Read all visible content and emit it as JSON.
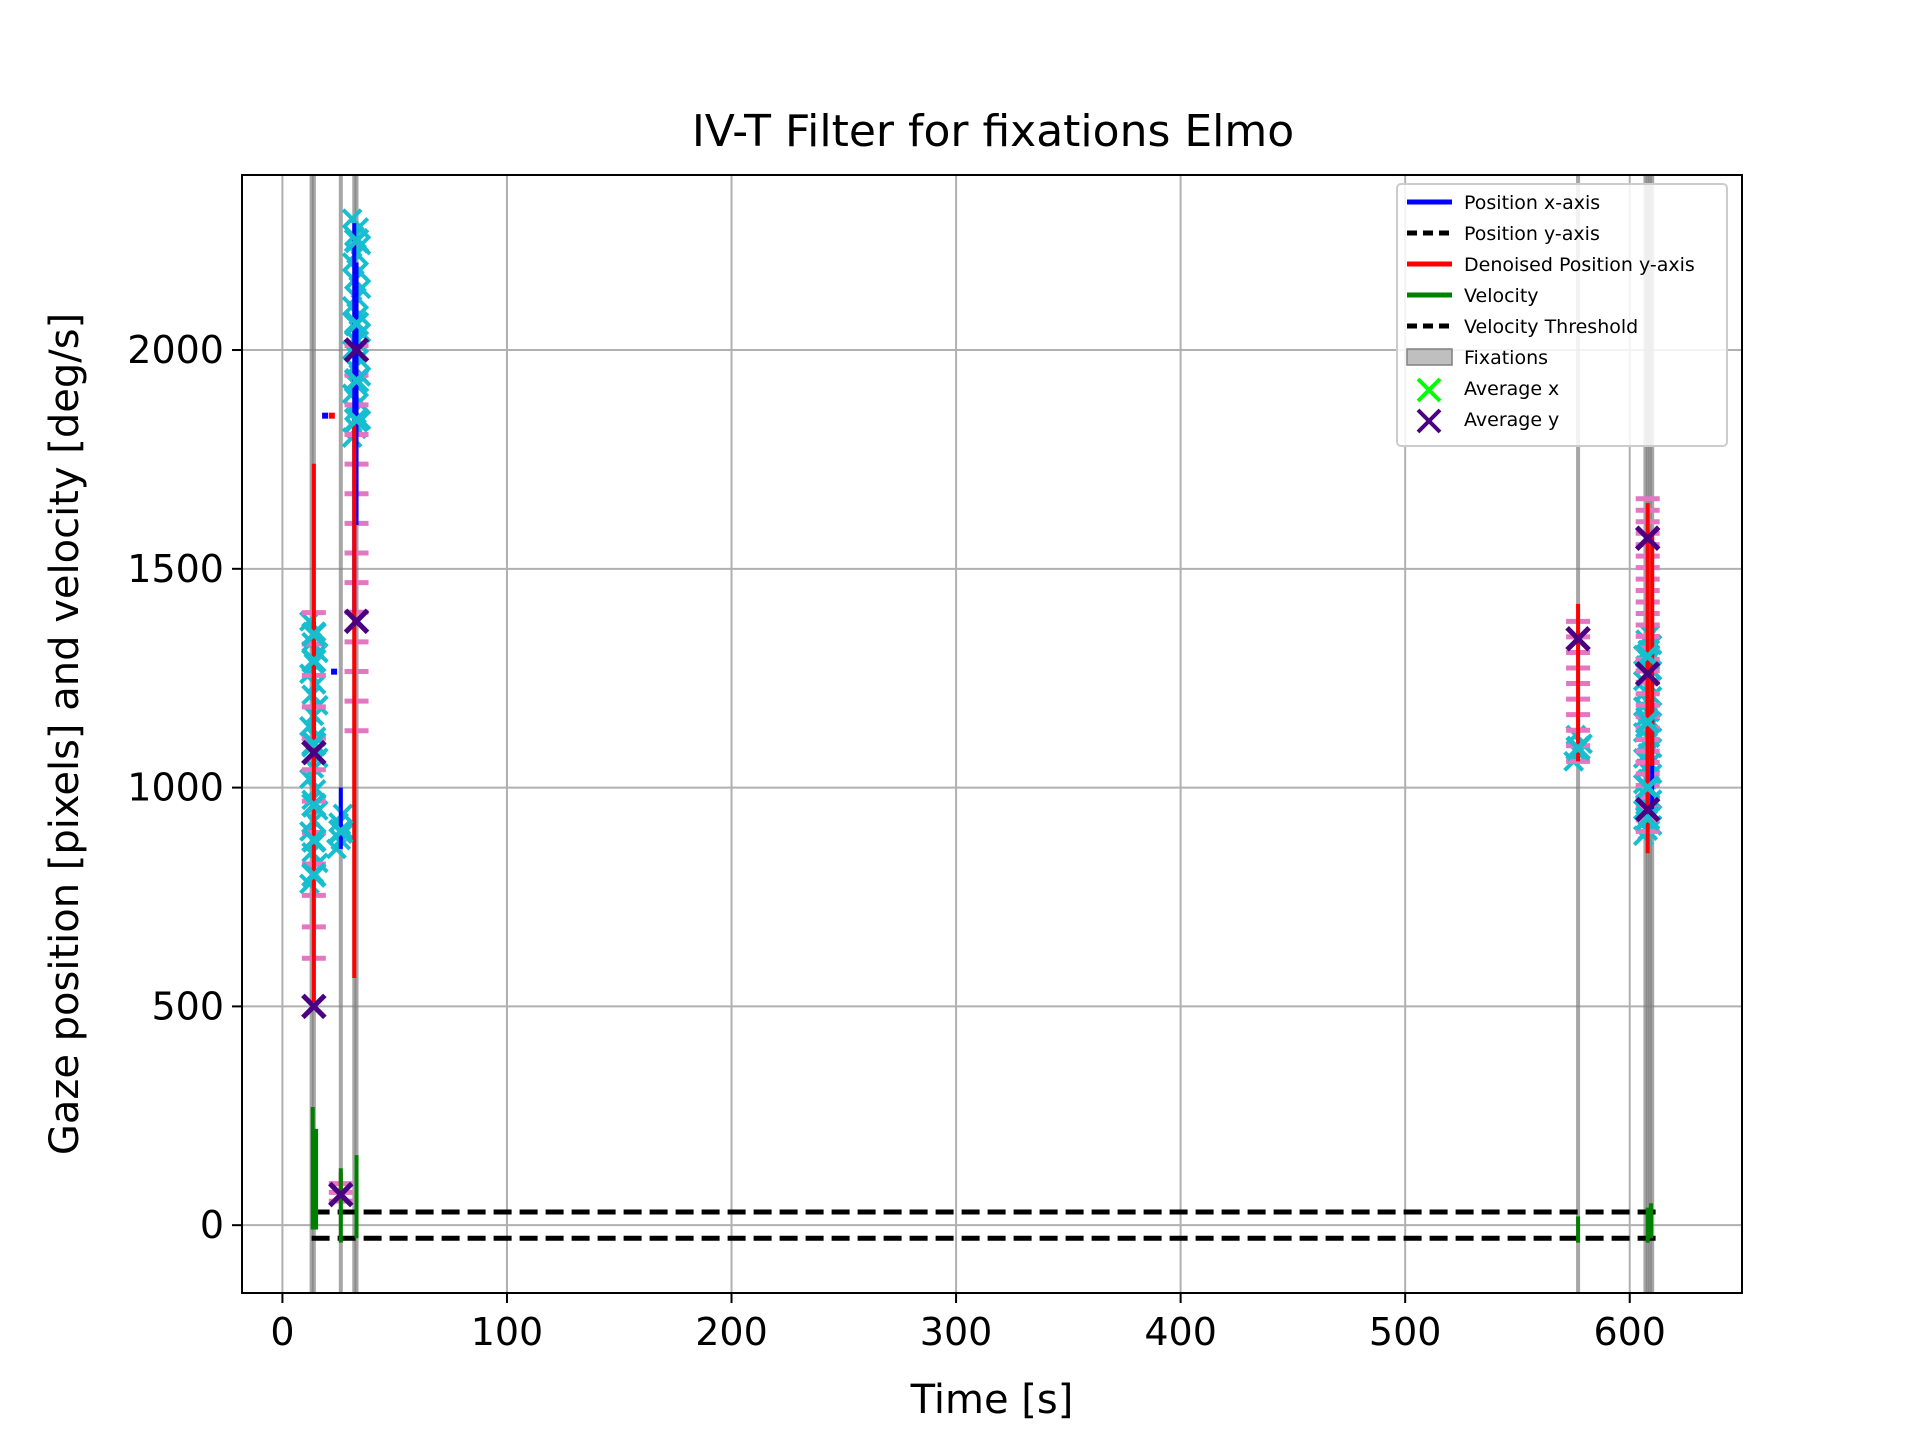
{
  "chart_data": {
    "type": "line",
    "title": "IV-T Filter for fixations Elmo",
    "xlabel": "Time [s]",
    "ylabel": "Gaze position [pixels] and velocity [deg/s]",
    "xlim": [
      -18,
      650
    ],
    "ylim": [
      -155,
      2400
    ],
    "xticks": [
      0,
      100,
      200,
      300,
      400,
      500,
      600
    ],
    "yticks": [
      0,
      500,
      1000,
      1500,
      2000
    ],
    "grid": true,
    "legend_position": "top-right",
    "legend": [
      {
        "label": "Position x-axis",
        "style": "line",
        "color": "#0000ff"
      },
      {
        "label": "Position y-axis",
        "style": "dash",
        "color": "#000000"
      },
      {
        "label": "Denoised Position y-axis",
        "style": "line",
        "color": "#ff0000"
      },
      {
        "label": "Velocity",
        "style": "line",
        "color": "#008000"
      },
      {
        "label": "Velocity Threshold",
        "style": "dash",
        "color": "#000000"
      },
      {
        "label": "Fixations",
        "style": "patch",
        "color": "#808080"
      },
      {
        "label": "Average x",
        "style": "x",
        "color": "#00ff00"
      },
      {
        "label": "Average y",
        "style": "x",
        "color": "#4b0082"
      }
    ],
    "velocity_threshold": {
      "upper": 30,
      "lower": -30,
      "x": [
        13,
        615
      ]
    },
    "fixation_lines": [
      13,
      14,
      26,
      32,
      33,
      577,
      607,
      608,
      609,
      610
    ],
    "position_x_segments": [
      {
        "x": 14,
        "y0": 1050,
        "y1": 1380
      },
      {
        "x": 26,
        "y0": 860,
        "y1": 1000
      },
      {
        "x": 32,
        "y0": 1400,
        "y1": 2290
      },
      {
        "x": 33,
        "y0": 1600,
        "y1": 2200
      },
      {
        "x": 608,
        "y0": 920,
        "y1": 1300
      },
      {
        "x": 610,
        "y0": 950,
        "y1": 1200
      }
    ],
    "position_x_points": [
      {
        "x": 23,
        "y": 1265
      },
      {
        "x": 19,
        "y": 1850
      }
    ],
    "denoised_y_segments": [
      {
        "x": 14,
        "y0": 510,
        "y1": 1740
      },
      {
        "x": 26,
        "y0": 55,
        "y1": 120
      },
      {
        "x": 32,
        "y0": 565,
        "y1": 1840
      },
      {
        "x": 577,
        "y0": 1060,
        "y1": 1420
      },
      {
        "x": 608,
        "y0": 850,
        "y1": 1650
      },
      {
        "x": 610,
        "y0": 1050,
        "y1": 1580
      }
    ],
    "denoised_y_points": [
      {
        "x": 22,
        "y": 1850
      }
    ],
    "velocity_segments": [
      {
        "x": 13.5,
        "y0": -10,
        "y1": 270
      },
      {
        "x": 15,
        "y0": -10,
        "y1": 220
      },
      {
        "x": 26,
        "y0": -40,
        "y1": 130
      },
      {
        "x": 33,
        "y0": -30,
        "y1": 160
      },
      {
        "x": 577,
        "y0": -40,
        "y1": 20
      },
      {
        "x": 608,
        "y0": -40,
        "y1": 40
      },
      {
        "x": 609.5,
        "y0": -30,
        "y1": 50
      }
    ],
    "samples_x_clusters": [
      {
        "x": 14,
        "y0": 780,
        "y1": 1380,
        "count": 26
      },
      {
        "x": 26,
        "y0": 860,
        "y1": 940,
        "count": 5
      },
      {
        "x": 33,
        "y0": 1800,
        "y1": 2300,
        "count": 26
      },
      {
        "x": 577,
        "y0": 1060,
        "y1": 1120,
        "count": 4
      },
      {
        "x": 608,
        "y0": 890,
        "y1": 1350,
        "count": 40
      }
    ],
    "samples_y_clusters": [
      {
        "x": 14,
        "y0": 610,
        "y1": 1400,
        "count": 12
      },
      {
        "x": 33,
        "y0": 1130,
        "y1": 2010,
        "count": 14
      },
      {
        "x": 577,
        "y0": 1060,
        "y1": 1380,
        "count": 10
      },
      {
        "x": 608,
        "y0": 900,
        "y1": 1660,
        "count": 30
      },
      {
        "x": 26,
        "y0": 55,
        "y1": 95,
        "count": 3
      }
    ],
    "average_x_points": [
      {
        "x": 14,
        "y": 1350
      },
      {
        "x": 14,
        "y": 1290
      },
      {
        "x": 14,
        "y": 1100
      },
      {
        "x": 14,
        "y": 960
      },
      {
        "x": 14,
        "y": 880
      },
      {
        "x": 14,
        "y": 800
      },
      {
        "x": 26,
        "y": 900
      },
      {
        "x": 33,
        "y": 2060
      },
      {
        "x": 33,
        "y": 1930
      },
      {
        "x": 33,
        "y": 1840
      },
      {
        "x": 33,
        "y": 2250
      },
      {
        "x": 577,
        "y": 1090
      },
      {
        "x": 608,
        "y": 1300
      },
      {
        "x": 608,
        "y": 1150
      },
      {
        "x": 608,
        "y": 1000
      },
      {
        "x": 608,
        "y": 930
      }
    ],
    "average_y_points": [
      {
        "x": 14,
        "y": 500
      },
      {
        "x": 14,
        "y": 1080
      },
      {
        "x": 26,
        "y": 70
      },
      {
        "x": 33,
        "y": 1380
      },
      {
        "x": 33,
        "y": 2000
      },
      {
        "x": 577,
        "y": 1340
      },
      {
        "x": 608,
        "y": 1570
      },
      {
        "x": 608,
        "y": 1260
      },
      {
        "x": 608,
        "y": 950
      }
    ]
  }
}
